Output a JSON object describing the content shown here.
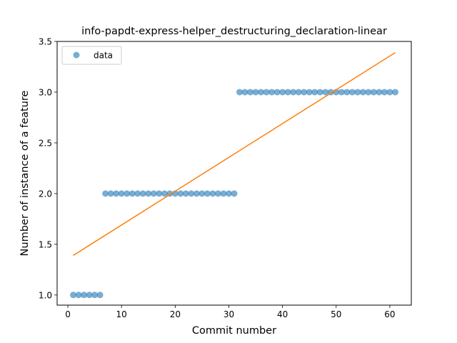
{
  "chart_data": {
    "type": "scatter",
    "title": "info-papdt-express-helper_destructuring_declaration-linear",
    "xlabel": "Commit number",
    "ylabel": "Number of instance of a feature",
    "xlim": [
      -2.0,
      64.0
    ],
    "ylim": [
      0.9,
      3.5
    ],
    "xticks": [
      0,
      10,
      20,
      30,
      40,
      50,
      60
    ],
    "yticks": [
      1.0,
      1.5,
      2.0,
      2.5,
      3.0,
      3.5
    ],
    "xtick_labels": [
      "0",
      "10",
      "20",
      "30",
      "40",
      "50",
      "60"
    ],
    "ytick_labels": [
      "1.0",
      "1.5",
      "2.0",
      "2.5",
      "3.0",
      "3.5"
    ],
    "grid": false,
    "legend": {
      "position": "upper-left",
      "entries": [
        "data"
      ]
    },
    "series": [
      {
        "name": "data",
        "kind": "scatter",
        "color": "#1f77b4",
        "x": [
          1,
          2,
          3,
          4,
          5,
          6,
          7,
          8,
          9,
          10,
          11,
          12,
          13,
          14,
          15,
          16,
          17,
          18,
          19,
          20,
          21,
          22,
          23,
          24,
          25,
          26,
          27,
          28,
          29,
          30,
          31,
          32,
          33,
          34,
          35,
          36,
          37,
          38,
          39,
          40,
          41,
          42,
          43,
          44,
          45,
          46,
          47,
          48,
          49,
          50,
          51,
          52,
          53,
          54,
          55,
          56,
          57,
          58,
          59,
          60,
          61
        ],
        "y": [
          1,
          1,
          1,
          1,
          1,
          1,
          2,
          2,
          2,
          2,
          2,
          2,
          2,
          2,
          2,
          2,
          2,
          2,
          2,
          2,
          2,
          2,
          2,
          2,
          2,
          2,
          2,
          2,
          2,
          2,
          2,
          3,
          3,
          3,
          3,
          3,
          3,
          3,
          3,
          3,
          3,
          3,
          3,
          3,
          3,
          3,
          3,
          3,
          3,
          3,
          3,
          3,
          3,
          3,
          3,
          3,
          3,
          3,
          3,
          3,
          3
        ]
      },
      {
        "kind": "line",
        "color": "#ff7f0e",
        "x": [
          1,
          61
        ],
        "y": [
          1.39,
          3.39
        ]
      }
    ]
  }
}
